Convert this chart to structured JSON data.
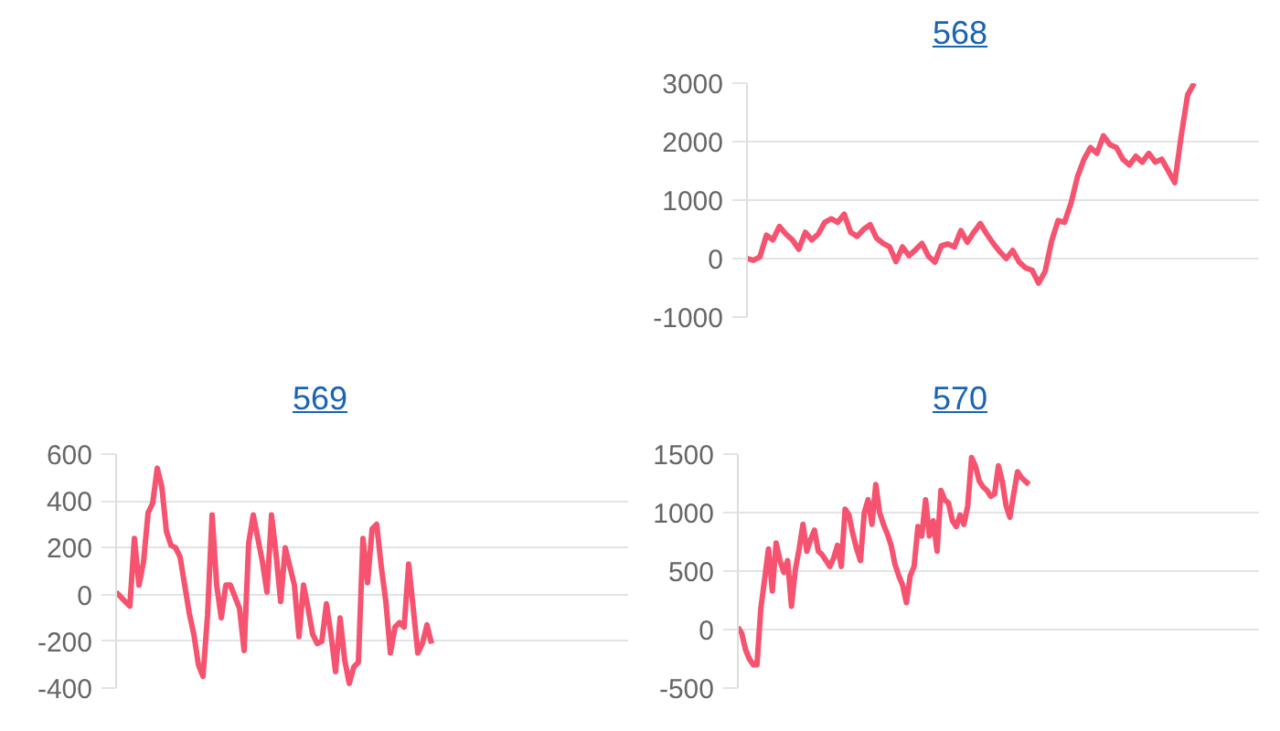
{
  "chart_data": [
    {
      "type": "line",
      "title": "568",
      "categories": [
        null,
        null,
        null,
        null,
        null,
        null,
        null,
        null,
        null,
        null,
        null,
        null,
        null,
        null,
        null,
        null,
        null,
        null,
        null,
        null,
        null,
        null,
        null,
        null,
        null,
        null,
        null,
        null,
        null,
        null,
        null,
        null,
        null,
        null,
        null,
        null,
        null,
        null,
        null,
        null,
        null,
        null,
        null,
        null,
        null,
        null,
        null,
        null,
        null,
        null,
        null,
        null,
        null,
        null,
        null,
        null,
        null,
        null,
        null,
        null,
        null,
        null,
        null,
        null,
        null,
        null,
        null,
        null,
        null,
        null,
        null,
        null,
        null,
        null,
        null,
        null,
        null,
        null,
        null,
        null
      ],
      "series": [
        {
          "color": "#f5536f",
          "values": [
            0,
            -30,
            30,
            400,
            320,
            550,
            420,
            320,
            160,
            450,
            320,
            420,
            620,
            680,
            620,
            760,
            450,
            380,
            500,
            580,
            350,
            260,
            200,
            -50,
            200,
            50,
            150,
            260,
            40,
            -60,
            220,
            250,
            200,
            480,
            280,
            450,
            600,
            420,
            260,
            120,
            0,
            140,
            -60,
            -160,
            -200,
            -420,
            -220,
            300,
            650,
            620,
            950,
            1400,
            1700,
            1900,
            1800,
            2100,
            1950,
            1900,
            1700,
            1600,
            1750,
            1650,
            1800,
            1650,
            1700,
            1500,
            1300,
            2100,
            2800,
            3000,
            null,
            null,
            null,
            null,
            null,
            null,
            null,
            null,
            null,
            null
          ]
        }
      ],
      "ylim": [
        -1000,
        3000
      ],
      "yticks": [
        -1000,
        0,
        1000,
        2000,
        3000
      ],
      "grid": "y",
      "tick_labels": "y"
    },
    {
      "type": "line",
      "title": "569",
      "categories": [
        null,
        null,
        null,
        null,
        null,
        null,
        null,
        null,
        null,
        null,
        null,
        null,
        null,
        null,
        null,
        null,
        null,
        null,
        null,
        null,
        null,
        null,
        null,
        null,
        null,
        null,
        null,
        null,
        null,
        null,
        null,
        null,
        null,
        null,
        null,
        null,
        null,
        null,
        null,
        null,
        null,
        null,
        null,
        null,
        null,
        null,
        null,
        null,
        null,
        null,
        null,
        null,
        null,
        null,
        null,
        null,
        null,
        null,
        null,
        null,
        null,
        null,
        null,
        null,
        null,
        null,
        null,
        null,
        null,
        null,
        null,
        null,
        null,
        null,
        null,
        null,
        null,
        null,
        null,
        null,
        null,
        null,
        null,
        null,
        null,
        null,
        null,
        null,
        null,
        null,
        null,
        null,
        null,
        null,
        null,
        null,
        null,
        null,
        null,
        null,
        null,
        null,
        null,
        null,
        null,
        null,
        null,
        null,
        null,
        null,
        null,
        null,
        null
      ],
      "series": [
        {
          "color": "#f5536f",
          "values": [
            10,
            -10,
            -30,
            -50,
            240,
            40,
            140,
            350,
            390,
            540,
            460,
            270,
            210,
            200,
            160,
            40,
            -80,
            -170,
            -300,
            -350,
            -90,
            340,
            40,
            -100,
            40,
            40,
            -10,
            -60,
            -240,
            220,
            340,
            240,
            140,
            10,
            340,
            170,
            -30,
            200,
            120,
            40,
            -180,
            40,
            -60,
            -170,
            -210,
            -200,
            -40,
            -170,
            -330,
            -100,
            -280,
            -380,
            -310,
            -290,
            240,
            50,
            280,
            300,
            120,
            -30,
            -250,
            -140,
            -120,
            -140,
            130,
            -60,
            -250,
            -210,
            -130,
            -210,
            null,
            null,
            null,
            null,
            null,
            null,
            null,
            null,
            null,
            null,
            null,
            null,
            null,
            null,
            null,
            null,
            null,
            null,
            null,
            null,
            null,
            null,
            null,
            null,
            null,
            null,
            null,
            null,
            null,
            null,
            null,
            null,
            null,
            null,
            null,
            null,
            null,
            null,
            null,
            null,
            null,
            null,
            null
          ]
        }
      ],
      "ylim": [
        -400,
        600
      ],
      "yticks": [
        -400,
        -200,
        0,
        200,
        400,
        600
      ],
      "grid": "y",
      "tick_labels": "y"
    },
    {
      "type": "line",
      "title": "570",
      "categories": [
        null,
        null,
        null,
        null,
        null,
        null,
        null,
        null,
        null,
        null,
        null,
        null,
        null,
        null,
        null,
        null,
        null,
        null,
        null,
        null,
        null,
        null,
        null,
        null,
        null,
        null,
        null,
        null,
        null,
        null,
        null,
        null,
        null,
        null,
        null,
        null,
        null,
        null,
        null,
        null,
        null,
        null,
        null,
        null,
        null,
        null,
        null,
        null,
        null,
        null,
        null,
        null,
        null,
        null,
        null,
        null,
        null,
        null,
        null,
        null,
        null,
        null,
        null,
        null,
        null,
        null,
        null,
        null,
        null,
        null,
        null,
        null,
        null,
        null,
        null,
        null,
        null,
        null,
        null,
        null,
        null,
        null,
        null,
        null,
        null,
        null,
        null,
        null,
        null,
        null,
        null,
        null,
        null,
        null,
        null,
        null,
        null,
        null,
        null,
        null,
        null,
        null,
        null,
        null,
        null,
        null,
        null,
        null,
        null,
        null,
        null,
        null,
        null,
        null,
        null,
        null,
        null,
        null,
        null,
        null,
        null,
        null,
        null,
        null,
        null,
        null,
        null,
        null,
        null,
        null,
        null,
        null,
        null,
        null,
        null,
        null,
        null
      ],
      "series": [
        {
          "color": "#f5536f",
          "values": [
            20,
            -30,
            -170,
            -250,
            -300,
            -300,
            180,
            430,
            690,
            330,
            740,
            590,
            490,
            590,
            200,
            510,
            690,
            900,
            670,
            770,
            850,
            670,
            640,
            590,
            540,
            610,
            720,
            540,
            1030,
            980,
            820,
            690,
            590,
            1000,
            1110,
            900,
            1240,
            1000,
            900,
            820,
            720,
            560,
            460,
            380,
            230,
            460,
            540,
            880,
            800,
            1110,
            800,
            930,
            670,
            1190,
            1110,
            1080,
            930,
            880,
            980,
            900,
            1060,
            1470,
            1400,
            1270,
            1220,
            1190,
            1140,
            1160,
            1400,
            1270,
            1060,
            960,
            1160,
            1350,
            1300,
            1270,
            1240,
            null,
            null,
            null,
            null,
            null,
            null,
            null,
            null,
            null,
            null,
            null,
            null,
            null,
            null,
            null,
            null,
            null,
            null,
            null,
            null,
            null,
            null,
            null,
            null,
            null,
            null,
            null,
            null,
            null,
            null,
            null,
            null,
            null,
            null,
            null,
            null,
            null,
            null,
            null,
            null,
            null,
            null,
            null,
            null,
            null,
            null,
            null,
            null,
            null,
            null,
            null,
            null,
            null,
            null,
            null,
            null,
            null,
            null,
            null,
            null
          ]
        }
      ],
      "ylim": [
        -500,
        1500
      ],
      "yticks": [
        -500,
        0,
        500,
        1000,
        1500
      ],
      "grid": "y",
      "tick_labels": "y"
    }
  ]
}
